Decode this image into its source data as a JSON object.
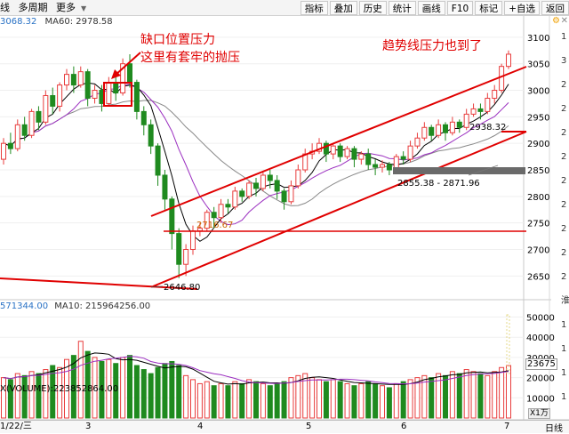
{
  "toolbar": {
    "left_items": [
      "线",
      "多周期",
      "更多"
    ],
    "buttons": [
      "指标",
      "叠加",
      "历史",
      "统计",
      "画线",
      "F10",
      "标记",
      "+自选",
      "返回"
    ]
  },
  "info": {
    "ma_value": "3068.32",
    "ma60": "MA60: 2978.58"
  },
  "annotations": {
    "gap": [
      "缺口位置压力",
      "这里有套牢的抛压"
    ],
    "trend": "趋势线压力也到了"
  },
  "price_labels": {
    "low": "2646.80",
    "small_low": "2716.67",
    "recent": "2938.32",
    "range": "2855.38 - 2871.96"
  },
  "volume_info": {
    "ma5": "571344.00",
    "ma10": "MA10: 215964256.00",
    "max_vol": "X(VOLUME):223852864.00",
    "current": "23675",
    "unit": "X1万"
  },
  "dates": [
    "1/22/三",
    "3",
    "4",
    "5",
    "6",
    "7"
  ],
  "period_label": "日线",
  "right_axis_chars": [
    "1",
    "3",
    "2",
    "2",
    "2",
    "2",
    "2",
    "2",
    "2",
    "2",
    "2",
    "淮",
    "1",
    "1",
    "1",
    "1"
  ],
  "colors": {
    "up": "#e83d3d",
    "down": "#1f8a1f",
    "ma5": "#000000",
    "ma10": "#9b2fc0",
    "ma60": "#888888",
    "trend": "#e00000"
  },
  "chart_data": {
    "type": "candlestick",
    "price_axis": {
      "ticks": [
        2650,
        2700,
        2750,
        2800,
        2850,
        2900,
        2950,
        3000,
        3050,
        3100
      ],
      "ylim": [
        2612,
        3140
      ]
    },
    "volume_axis": {
      "ticks": [
        10000,
        20000,
        30000,
        40000,
        50000
      ],
      "ylim": [
        0,
        52000
      ]
    },
    "candles": [
      [
        2870,
        2900,
        2860,
        2910
      ],
      [
        2900,
        2890,
        2880,
        2920
      ],
      [
        2890,
        2935,
        2885,
        2945
      ],
      [
        2935,
        2915,
        2905,
        2950
      ],
      [
        2915,
        2960,
        2910,
        2965
      ],
      [
        2960,
        2940,
        2925,
        2970
      ],
      [
        2940,
        2990,
        2935,
        3000
      ],
      [
        2990,
        2970,
        2955,
        3005
      ],
      [
        2970,
        3010,
        2960,
        3015
      ],
      [
        3010,
        3030,
        3000,
        3040
      ],
      [
        3030,
        3010,
        2995,
        3045
      ],
      [
        3010,
        3035,
        3005,
        3045
      ],
      [
        3035,
        2985,
        2970,
        3040
      ],
      [
        2985,
        3000,
        2975,
        3010
      ],
      [
        3000,
        2975,
        2960,
        3010
      ],
      [
        2975,
        3015,
        2970,
        3025
      ],
      [
        3015,
        2995,
        2980,
        3030
      ],
      [
        2995,
        3050,
        2990,
        3060
      ],
      [
        3050,
        3015,
        3005,
        3068
      ],
      [
        3015,
        2960,
        2945,
        3020
      ],
      [
        2960,
        2935,
        2915,
        2970
      ],
      [
        2935,
        2895,
        2880,
        2945
      ],
      [
        2895,
        2840,
        2820,
        2900
      ],
      [
        2840,
        2795,
        2775,
        2850
      ],
      [
        2795,
        2730,
        2700,
        2800
      ],
      [
        2730,
        2672,
        2646,
        2740
      ],
      [
        2672,
        2700,
        2650,
        2710
      ],
      [
        2700,
        2735,
        2690,
        2745
      ],
      [
        2735,
        2740,
        2725,
        2750
      ],
      [
        2740,
        2770,
        2735,
        2775
      ],
      [
        2770,
        2760,
        2740,
        2780
      ],
      [
        2760,
        2785,
        2750,
        2795
      ],
      [
        2785,
        2780,
        2768,
        2795
      ],
      [
        2780,
        2810,
        2775,
        2818
      ],
      [
        2810,
        2800,
        2790,
        2815
      ],
      [
        2800,
        2825,
        2795,
        2830
      ],
      [
        2825,
        2815,
        2800,
        2835
      ],
      [
        2815,
        2840,
        2810,
        2845
      ],
      [
        2840,
        2830,
        2815,
        2850
      ],
      [
        2830,
        2810,
        2795,
        2840
      ],
      [
        2810,
        2790,
        2775,
        2815
      ],
      [
        2790,
        2820,
        2785,
        2830
      ],
      [
        2820,
        2850,
        2815,
        2860
      ],
      [
        2850,
        2880,
        2845,
        2890
      ],
      [
        2880,
        2885,
        2870,
        2900
      ],
      [
        2885,
        2900,
        2880,
        2910
      ],
      [
        2900,
        2880,
        2865,
        2905
      ],
      [
        2880,
        2895,
        2870,
        2900
      ],
      [
        2895,
        2875,
        2865,
        2900
      ],
      [
        2875,
        2890,
        2870,
        2895
      ],
      [
        2890,
        2870,
        2855,
        2895
      ],
      [
        2870,
        2880,
        2860,
        2885
      ],
      [
        2880,
        2860,
        2850,
        2890
      ],
      [
        2860,
        2855,
        2840,
        2870
      ],
      [
        2855,
        2860,
        2845,
        2868
      ],
      [
        2860,
        2850,
        2840,
        2865
      ],
      [
        2850,
        2875,
        2845,
        2880
      ],
      [
        2875,
        2870,
        2860,
        2885
      ],
      [
        2870,
        2895,
        2865,
        2905
      ],
      [
        2895,
        2910,
        2890,
        2920
      ],
      [
        2910,
        2930,
        2905,
        2940
      ],
      [
        2930,
        2915,
        2905,
        2935
      ],
      [
        2915,
        2935,
        2910,
        2945
      ],
      [
        2935,
        2920,
        2905,
        2940
      ],
      [
        2920,
        2940,
        2915,
        2950
      ],
      [
        2940,
        2930,
        2920,
        2945
      ],
      [
        2930,
        2955,
        2925,
        2965
      ],
      [
        2955,
        2965,
        2950,
        2975
      ],
      [
        2965,
        2960,
        2945,
        2975
      ],
      [
        2960,
        2985,
        2955,
        2995
      ],
      [
        2985,
        3000,
        2975,
        3010
      ],
      [
        3000,
        3045,
        2995,
        3050
      ],
      [
        3045,
        3068,
        3040,
        3075
      ]
    ],
    "volumes": [
      20000,
      19000,
      22000,
      21000,
      23000,
      22000,
      24000,
      26000,
      25000,
      29000,
      31000,
      38000,
      33000,
      30000,
      28000,
      29000,
      27000,
      30000,
      31000,
      26000,
      24000,
      22000,
      25000,
      27000,
      28000,
      26000,
      21000,
      19000,
      17000,
      18000,
      16000,
      17000,
      16000,
      18000,
      17000,
      19000,
      18000,
      17000,
      16000,
      17000,
      18000,
      20000,
      21000,
      22000,
      20000,
      19000,
      18000,
      19000,
      18000,
      17000,
      16000,
      17000,
      18000,
      17000,
      16000,
      15000,
      17000,
      18000,
      19000,
      20000,
      21000,
      20000,
      22000,
      21000,
      23000,
      22000,
      24000,
      23000,
      22000,
      21000,
      23000,
      25000,
      26000
    ]
  }
}
